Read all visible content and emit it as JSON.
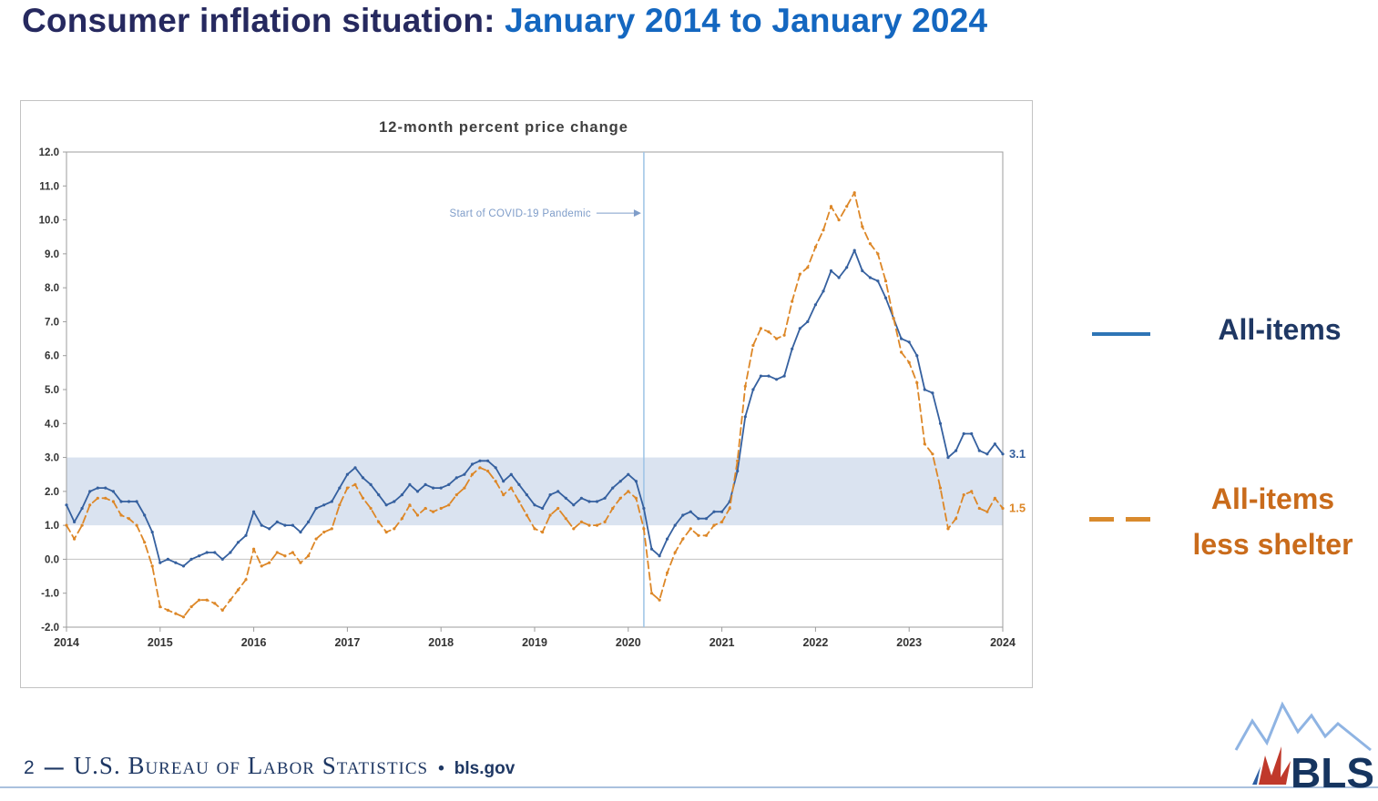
{
  "slide": {
    "title_prefix": "Consumer inflation situation: ",
    "title_range": "January 2014 to January 2024"
  },
  "legend": {
    "all_items": "All-items",
    "less_shelter_line1": "All-items",
    "less_shelter_line2": "less shelter"
  },
  "footer": {
    "page": "2",
    "dash": "—",
    "org": "U.S. Bureau of Labor Statistics",
    "bullet": "•",
    "site": "bls.gov"
  },
  "logo": {
    "text": "BLS"
  },
  "colors": {
    "title_navy": "#26295f",
    "title_blue": "#1467c0",
    "all_items": "#35609f",
    "less_shelter": "#dd8727",
    "band": "#dae3f0",
    "covid_line": "#9dc3e6",
    "legend_navy": "#1f3864",
    "legend_orange": "#c96b1b"
  },
  "chart_data": {
    "type": "line",
    "title": "12-month percent price change",
    "x_start": "2014-01",
    "x_end": "2024-01",
    "x_frequency": "monthly",
    "x_tick_labels": [
      "2014",
      "2015",
      "2016",
      "2017",
      "2018",
      "2019",
      "2020",
      "2021",
      "2022",
      "2023",
      "2024"
    ],
    "ylim": [
      -2.0,
      12.0
    ],
    "y_tick_step": 1.0,
    "y_tick_labels": [
      "12.0",
      "11.0",
      "10.0",
      "9.0",
      "8.0",
      "7.0",
      "6.0",
      "5.0",
      "4.0",
      "3.0",
      "2.0",
      "1.0",
      "0.0",
      "-1.0",
      "-2.0"
    ],
    "grid": "zero-line only, shaded reference band",
    "legend_position": "right-outside",
    "band": {
      "from": 1.0,
      "to": 3.0
    },
    "annotation": {
      "text": "Start of COVID-19 Pandemic",
      "month_index": 74,
      "y_value": 10.2
    },
    "series": [
      {
        "name": "All-items",
        "style": "solid",
        "color": "#35609f",
        "end_label": "3.1",
        "values": [
          1.6,
          1.1,
          1.5,
          2.0,
          2.1,
          2.1,
          2.0,
          1.7,
          1.7,
          1.7,
          1.3,
          0.8,
          -0.1,
          0.0,
          -0.1,
          -0.2,
          0.0,
          0.1,
          0.2,
          0.2,
          0.0,
          0.2,
          0.5,
          0.7,
          1.4,
          1.0,
          0.9,
          1.1,
          1.0,
          1.0,
          0.8,
          1.1,
          1.5,
          1.6,
          1.7,
          2.1,
          2.5,
          2.7,
          2.4,
          2.2,
          1.9,
          1.6,
          1.7,
          1.9,
          2.2,
          2.0,
          2.2,
          2.1,
          2.1,
          2.2,
          2.4,
          2.5,
          2.8,
          2.9,
          2.9,
          2.7,
          2.3,
          2.5,
          2.2,
          1.9,
          1.6,
          1.5,
          1.9,
          2.0,
          1.8,
          1.6,
          1.8,
          1.7,
          1.7,
          1.8,
          2.1,
          2.3,
          2.5,
          2.3,
          1.5,
          0.3,
          0.1,
          0.6,
          1.0,
          1.3,
          1.4,
          1.2,
          1.2,
          1.4,
          1.4,
          1.7,
          2.6,
          4.2,
          5.0,
          5.4,
          5.4,
          5.3,
          5.4,
          6.2,
          6.8,
          7.0,
          7.5,
          7.9,
          8.5,
          8.3,
          8.6,
          9.1,
          8.5,
          8.3,
          8.2,
          7.7,
          7.1,
          6.5,
          6.4,
          6.0,
          5.0,
          4.9,
          4.0,
          3.0,
          3.2,
          3.7,
          3.7,
          3.2,
          3.1,
          3.4,
          3.1
        ]
      },
      {
        "name": "All-items less shelter",
        "style": "dashed",
        "color": "#dd8727",
        "end_label": "1.5",
        "values": [
          1.0,
          0.6,
          1.0,
          1.6,
          1.8,
          1.8,
          1.7,
          1.3,
          1.2,
          1.0,
          0.5,
          -0.2,
          -1.4,
          -1.5,
          -1.6,
          -1.7,
          -1.4,
          -1.2,
          -1.2,
          -1.3,
          -1.5,
          -1.2,
          -0.9,
          -0.6,
          0.3,
          -0.2,
          -0.1,
          0.2,
          0.1,
          0.2,
          -0.1,
          0.1,
          0.6,
          0.8,
          0.9,
          1.6,
          2.1,
          2.2,
          1.8,
          1.5,
          1.1,
          0.8,
          0.9,
          1.2,
          1.6,
          1.3,
          1.5,
          1.4,
          1.5,
          1.6,
          1.9,
          2.1,
          2.5,
          2.7,
          2.6,
          2.3,
          1.9,
          2.1,
          1.7,
          1.3,
          0.9,
          0.8,
          1.3,
          1.5,
          1.2,
          0.9,
          1.1,
          1.0,
          1.0,
          1.1,
          1.5,
          1.8,
          2.0,
          1.8,
          0.9,
          -1.0,
          -1.2,
          -0.4,
          0.2,
          0.6,
          0.9,
          0.7,
          0.7,
          1.0,
          1.1,
          1.5,
          2.9,
          5.1,
          6.3,
          6.8,
          6.7,
          6.5,
          6.6,
          7.6,
          8.4,
          8.6,
          9.2,
          9.7,
          10.4,
          10.0,
          10.4,
          10.8,
          9.8,
          9.3,
          9.0,
          8.2,
          7.1,
          6.1,
          5.8,
          5.2,
          3.4,
          3.1,
          2.1,
          0.9,
          1.2,
          1.9,
          2.0,
          1.5,
          1.4,
          1.8,
          1.5
        ]
      }
    ]
  }
}
